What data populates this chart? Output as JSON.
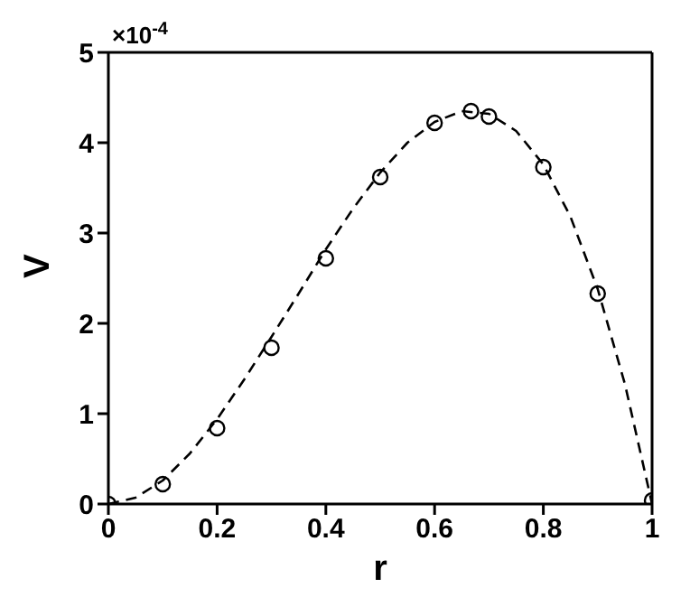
{
  "chart_data": {
    "type": "scatter",
    "xlabel": "r",
    "ylabel": "V",
    "annotations": [
      "×10$^{-4}$"
    ],
    "xlim": [
      0,
      1
    ],
    "xticks": [
      0,
      0.2,
      0.4,
      0.6,
      0.8,
      1
    ],
    "ylim": [
      0,
      5
    ],
    "yticks": [
      0,
      1,
      2,
      3,
      4,
      5
    ],
    "series": [
      {
        "type": "line",
        "color": "#000000",
        "line_style": "dashed",
        "marker": "none",
        "x": [
          0,
          0.05,
          0.1,
          0.15,
          0.2,
          0.25,
          0.3,
          0.35,
          0.4,
          0.45,
          0.5,
          0.55,
          0.6,
          0.65,
          0.7,
          0.75,
          0.8,
          0.85,
          0.9,
          0.95,
          1
        ],
        "values": [
          0,
          0.07,
          0.26,
          0.56,
          0.94,
          1.38,
          1.85,
          2.33,
          2.82,
          3.27,
          3.67,
          4.0,
          4.23,
          4.35,
          4.32,
          4.13,
          3.76,
          3.18,
          2.38,
          1.33,
          0
        ]
      },
      {
        "color": "#000000",
        "marker": "circle",
        "x": [
          0,
          0.1,
          0.2,
          0.3,
          0.4,
          0.5,
          0.6,
          0.667,
          0.7,
          0.8,
          0.9,
          1
        ],
        "values": [
          0,
          0.22,
          0.84,
          1.73,
          2.72,
          3.62,
          4.22,
          4.35,
          4.29,
          3.73,
          2.33,
          0.04
        ]
      }
    ]
  }
}
